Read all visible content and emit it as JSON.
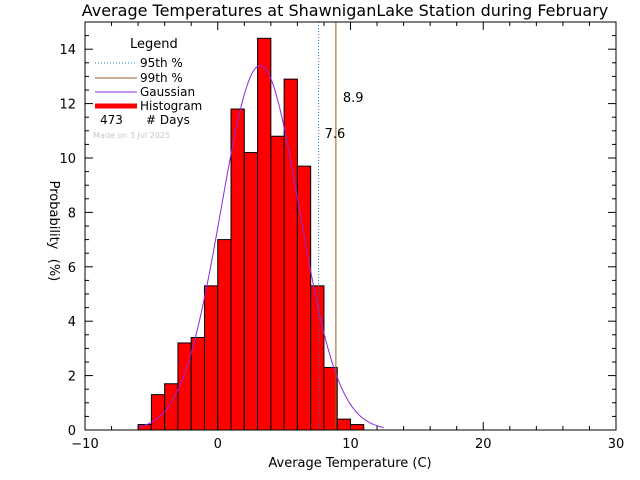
{
  "chart_data": {
    "type": "bar",
    "title": "Average Temperatures at ShawniganLake Station during February",
    "xlabel": "Average Temperature (C)",
    "ylabel": "Probability",
    "ylabel_unit": "(%)",
    "xlim": [
      -10,
      30
    ],
    "ylim": [
      0,
      15
    ],
    "xticks": [
      -10,
      0,
      10,
      20,
      30
    ],
    "yticks": [
      0,
      2,
      4,
      6,
      8,
      10,
      12,
      14
    ],
    "legend": {
      "title": "Legend",
      "placement": "top-left",
      "entries": [
        {
          "label": "95th %",
          "style": "dotted",
          "color": "#1f77d0"
        },
        {
          "label": "99th %",
          "style": "solid",
          "color": "#9c5a1c"
        },
        {
          "label": "Gaussian",
          "style": "solid",
          "color": "#8a2be2"
        },
        {
          "label": "Histogram",
          "style": "thick",
          "color": "#ff0000"
        }
      ],
      "days_count": "473",
      "days_label": "# Days"
    },
    "credit": "Made on 3 Jul 2025",
    "histogram": {
      "bin_edges": [
        -6,
        -5,
        -4,
        -3,
        -2,
        -1,
        0,
        1,
        2,
        3,
        4,
        5,
        6,
        7,
        8,
        9,
        10,
        11
      ],
      "values": [
        0.2,
        1.3,
        1.7,
        3.2,
        3.4,
        5.3,
        7.0,
        11.8,
        10.2,
        14.4,
        10.8,
        12.9,
        9.7,
        5.3,
        2.3,
        0.4,
        0.2
      ]
    },
    "percentiles": [
      {
        "name": "95th %",
        "value": 7.6,
        "label": "7.6",
        "color": "#1f77d0"
      },
      {
        "name": "99th %",
        "value": 8.9,
        "label": "8.9",
        "color": "#9c5a1c"
      }
    ],
    "gaussian": {
      "mean": 3.2,
      "sigma": 2.95,
      "peak": 13.4,
      "x_range": [
        -6,
        12.5
      ],
      "color": "#8a2be2"
    },
    "colors": {
      "histogram": "#ff0000",
      "axes": "#000000",
      "background": "#ffffff"
    }
  }
}
